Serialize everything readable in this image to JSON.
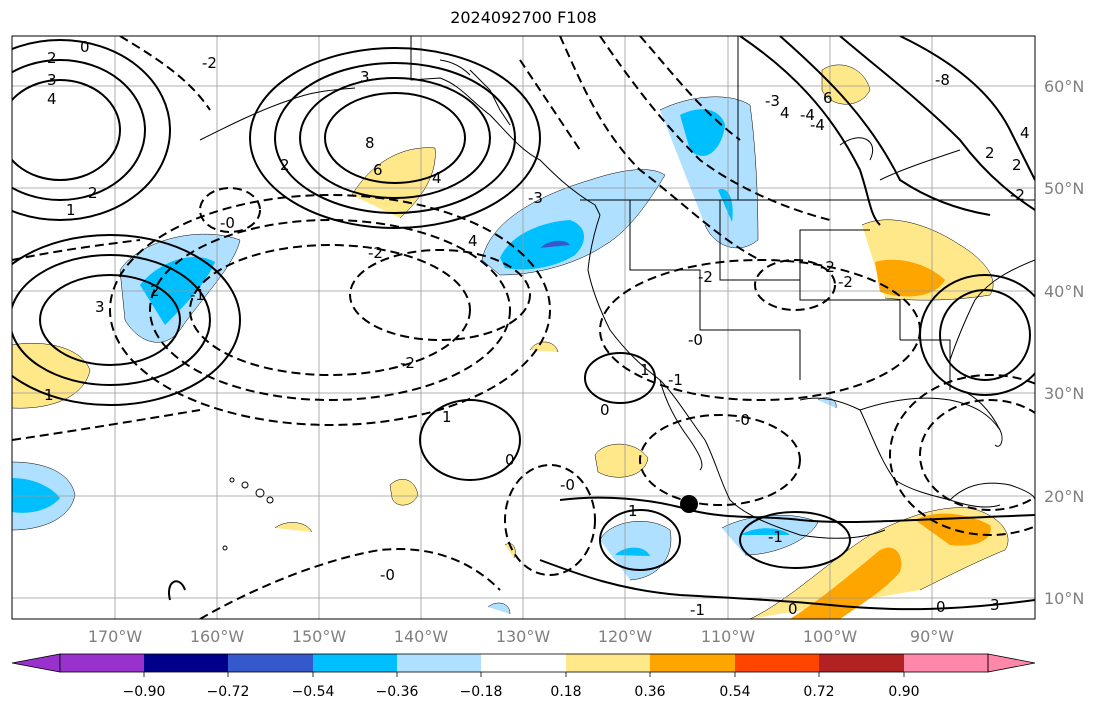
{
  "title": "2024092700 F108",
  "longitude_labels": [
    "170°W",
    "160°W",
    "150°W",
    "140°W",
    "130°W",
    "120°W",
    "110°W",
    "100°W",
    "90°W"
  ],
  "latitude_labels": [
    "60°N",
    "50°N",
    "40°N",
    "30°N",
    "20°N",
    "10°N"
  ],
  "colorbar": {
    "tick_labels": [
      "−0.90",
      "−0.72",
      "−0.54",
      "−0.36",
      "−0.18",
      "0.18",
      "0.36",
      "0.54",
      "0.72",
      "0.90"
    ],
    "colors": [
      "#9932cc",
      "#00008b",
      "#3558cc",
      "#00bfff",
      "#b0e0ff",
      "#ffffff",
      "#ffe88a",
      "#ffa500",
      "#ff4500",
      "#b22222",
      "#ff88aa"
    ]
  },
  "contour_labels": [
    "0",
    "2",
    "3",
    "4",
    "2",
    "1",
    "3",
    "-2",
    "8",
    "6",
    "4",
    "3",
    "4",
    "-2",
    "-2",
    "-3",
    "-4",
    "-2",
    "-0",
    "-2",
    "3",
    "-3",
    "1",
    "-2",
    "-4",
    "-1",
    "0",
    "-8",
    "6",
    "4",
    "4",
    "2",
    "2",
    "1",
    "1",
    "0",
    "-1",
    "-0",
    "0",
    "-0",
    "-1",
    "1",
    "-1",
    "-0",
    "0",
    "-2",
    "2",
    "2",
    "-0"
  ],
  "marker": "storm-center"
}
